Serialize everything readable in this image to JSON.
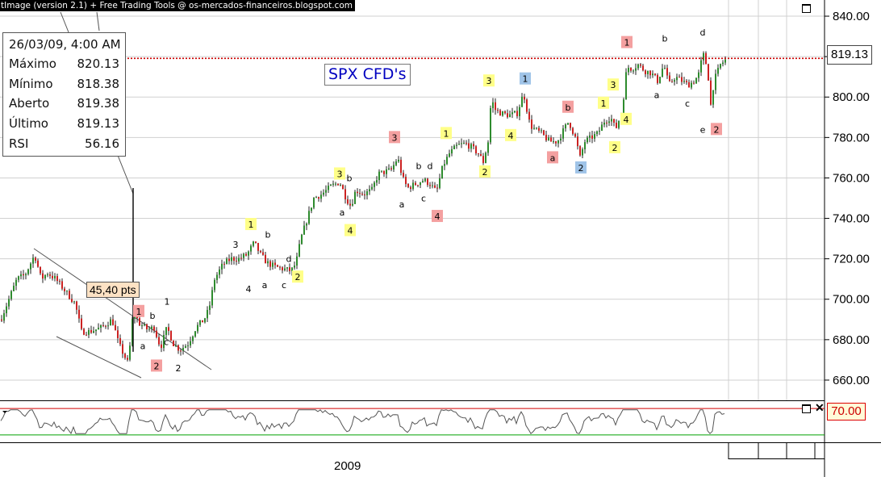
{
  "window": {
    "title": "tImage (version 2.1) + Free Trading Tools @ os-mercados-financeiros.blogspot.com"
  },
  "info_box": {
    "date": "26/03/09, 4:00 AM",
    "rows": [
      {
        "label": "Máximo",
        "value": "820.13"
      },
      {
        "label": "Mínimo",
        "value": "818.38"
      },
      {
        "label": "Aberto",
        "value": "819.38"
      },
      {
        "label": "Último",
        "value": "819.13"
      },
      {
        "label": "RSI",
        "value": "56.16"
      }
    ]
  },
  "instrument_label": "SPX CFD's",
  "last_price_tag": "819.13",
  "rsi_level_tag": "70.00",
  "measure_label": "45,40 pts",
  "year_label": "2009",
  "colors": {
    "candle_up": "#2e8b2e",
    "candle_down": "#cc2222",
    "price_line": "#cc0000",
    "rsi_line": "#555555",
    "rsi_upper": "#d00000",
    "rsi_lower": "#00a000",
    "label_yellow": "#ffff88",
    "label_red": "#f4a0a0",
    "label_blue": "#a0c4e8",
    "grid": "#d0d0d0"
  },
  "chart_data": {
    "type": "candlestick",
    "title": "SPX CFD's",
    "x_period_label": "2009",
    "ylim": [
      650,
      848
    ],
    "yticks": [
      "840.00",
      "820.00",
      "800.00",
      "780.00",
      "760.00",
      "740.00",
      "720.00",
      "700.00",
      "680.00",
      "660.00"
    ],
    "last_price": 819.13,
    "measure": {
      "label": "45,40 pts",
      "value": 45.4
    },
    "anchors": [
      [
        0,
        690
      ],
      [
        10,
        700
      ],
      [
        20,
        710
      ],
      [
        30,
        712
      ],
      [
        42,
        722
      ],
      [
        50,
        710
      ],
      [
        58,
        713
      ],
      [
        68,
        710
      ],
      [
        80,
        704
      ],
      [
        92,
        698
      ],
      [
        100,
        684
      ],
      [
        110,
        684
      ],
      [
        125,
        686
      ],
      [
        138,
        690
      ],
      [
        146,
        678
      ],
      [
        158,
        668
      ],
      [
        164,
        694
      ],
      [
        172,
        688
      ],
      [
        182,
        685
      ],
      [
        190,
        686
      ],
      [
        198,
        676
      ],
      [
        206,
        686
      ],
      [
        214,
        678
      ],
      [
        222,
        675
      ],
      [
        232,
        678
      ],
      [
        242,
        686
      ],
      [
        252,
        690
      ],
      [
        258,
        695
      ],
      [
        265,
        710
      ],
      [
        275,
        717
      ],
      [
        285,
        720
      ],
      [
        295,
        720
      ],
      [
        305,
        722
      ],
      [
        314,
        728
      ],
      [
        322,
        722
      ],
      [
        330,
        718
      ],
      [
        340,
        716
      ],
      [
        350,
        715
      ],
      [
        360,
        714
      ],
      [
        366,
        718
      ],
      [
        372,
        730
      ],
      [
        380,
        740
      ],
      [
        388,
        750
      ],
      [
        398,
        752
      ],
      [
        410,
        756
      ],
      [
        420,
        758
      ],
      [
        428,
        750
      ],
      [
        434,
        746
      ],
      [
        440,
        754
      ],
      [
        450,
        752
      ],
      [
        460,
        754
      ],
      [
        468,
        762
      ],
      [
        476,
        763
      ],
      [
        484,
        764
      ],
      [
        492,
        770
      ],
      [
        498,
        760
      ],
      [
        504,
        755
      ],
      [
        514,
        757
      ],
      [
        524,
        759
      ],
      [
        532,
        757
      ],
      [
        540,
        753
      ],
      [
        548,
        766
      ],
      [
        556,
        772
      ],
      [
        566,
        776
      ],
      [
        576,
        777
      ],
      [
        584,
        775
      ],
      [
        592,
        772
      ],
      [
        598,
        768
      ],
      [
        604,
        778
      ],
      [
        608,
        800
      ],
      [
        612,
        794
      ],
      [
        620,
        792
      ],
      [
        630,
        791
      ],
      [
        640,
        792
      ],
      [
        648,
        802
      ],
      [
        656,
        786
      ],
      [
        662,
        784
      ],
      [
        670,
        782
      ],
      [
        680,
        778
      ],
      [
        690,
        778
      ],
      [
        698,
        784
      ],
      [
        704,
        788
      ],
      [
        712,
        780
      ],
      [
        718,
        770
      ],
      [
        724,
        778
      ],
      [
        732,
        780
      ],
      [
        740,
        782
      ],
      [
        748,
        788
      ],
      [
        756,
        790
      ],
      [
        762,
        784
      ],
      [
        770,
        793
      ],
      [
        776,
        815
      ],
      [
        782,
        814
      ],
      [
        790,
        816
      ],
      [
        798,
        813
      ],
      [
        806,
        812
      ],
      [
        814,
        808
      ],
      [
        822,
        816
      ],
      [
        828,
        806
      ],
      [
        836,
        810
      ],
      [
        844,
        808
      ],
      [
        852,
        806
      ],
      [
        860,
        808
      ],
      [
        866,
        812
      ],
      [
        870,
        822
      ],
      [
        876,
        814
      ],
      [
        880,
        796
      ],
      [
        884,
        808
      ],
      [
        892,
        816
      ],
      [
        900,
        819
      ]
    ],
    "wave_labels": [
      {
        "text": "1",
        "x": 172,
        "y": 694,
        "style": "red"
      },
      {
        "text": "2",
        "x": 194,
        "y": 667,
        "style": "red"
      },
      {
        "text": "1",
        "x": 311,
        "y": 737,
        "style": "yellow"
      },
      {
        "text": "2",
        "x": 369,
        "y": 711,
        "style": "yellow"
      },
      {
        "text": "3",
        "x": 421,
        "y": 762,
        "style": "yellow"
      },
      {
        "text": "4",
        "x": 434,
        "y": 734,
        "style": "yellow"
      },
      {
        "text": "3",
        "x": 489,
        "y": 780,
        "style": "red"
      },
      {
        "text": "4",
        "x": 542,
        "y": 741,
        "style": "red"
      },
      {
        "text": "1",
        "x": 553,
        "y": 782,
        "style": "yellow"
      },
      {
        "text": "2",
        "x": 601,
        "y": 763,
        "style": "yellow"
      },
      {
        "text": "3",
        "x": 606,
        "y": 808,
        "style": "yellow"
      },
      {
        "text": "4",
        "x": 633,
        "y": 781,
        "style": "yellow"
      },
      {
        "text": "1",
        "x": 651,
        "y": 809,
        "style": "blue"
      },
      {
        "text": "a",
        "x": 685,
        "y": 770,
        "style": "red"
      },
      {
        "text": "b",
        "x": 704,
        "y": 795,
        "style": "red"
      },
      {
        "text": "2",
        "x": 720,
        "y": 765,
        "style": "blue"
      },
      {
        "text": "1",
        "x": 748,
        "y": 797,
        "style": "yellow"
      },
      {
        "text": "2",
        "x": 762,
        "y": 775,
        "style": "yellow"
      },
      {
        "text": "3",
        "x": 760,
        "y": 806,
        "style": "yellow"
      },
      {
        "text": "4",
        "x": 776,
        "y": 789,
        "style": "yellow"
      },
      {
        "text": "1",
        "x": 777,
        "y": 827,
        "style": "red"
      },
      {
        "text": "2",
        "x": 888,
        "y": 784,
        "style": "red"
      },
      {
        "text": "1",
        "x": 207,
        "y": 699,
        "style": "plain"
      },
      {
        "text": "b",
        "x": 189,
        "y": 692,
        "style": "plain"
      },
      {
        "text": "a",
        "x": 177,
        "y": 677,
        "style": "plain"
      },
      {
        "text": "c",
        "x": 206,
        "y": 679,
        "style": "plain"
      },
      {
        "text": "2",
        "x": 221,
        "y": 666,
        "style": "plain"
      },
      {
        "text": "3",
        "x": 292,
        "y": 727,
        "style": "plain"
      },
      {
        "text": "b",
        "x": 332,
        "y": 732,
        "style": "plain"
      },
      {
        "text": "d",
        "x": 358,
        "y": 720,
        "style": "plain"
      },
      {
        "text": "4",
        "x": 308,
        "y": 705,
        "style": "plain"
      },
      {
        "text": "a",
        "x": 328,
        "y": 707,
        "style": "plain"
      },
      {
        "text": "c",
        "x": 352,
        "y": 707,
        "style": "plain"
      },
      {
        "text": "b",
        "x": 433,
        "y": 760,
        "style": "plain"
      },
      {
        "text": "a",
        "x": 424,
        "y": 743,
        "style": "plain"
      },
      {
        "text": "b",
        "x": 519,
        "y": 766,
        "style": "plain"
      },
      {
        "text": "d",
        "x": 533,
        "y": 766,
        "style": "plain"
      },
      {
        "text": "c",
        "x": 525,
        "y": 750,
        "style": "plain"
      },
      {
        "text": "a",
        "x": 498,
        "y": 747,
        "style": "plain"
      },
      {
        "text": "b",
        "x": 824,
        "y": 829,
        "style": "plain"
      },
      {
        "text": "d",
        "x": 871,
        "y": 832,
        "style": "plain"
      },
      {
        "text": "a",
        "x": 814,
        "y": 801,
        "style": "plain"
      },
      {
        "text": "c",
        "x": 852,
        "y": 797,
        "style": "plain"
      },
      {
        "text": "e",
        "x": 871,
        "y": 784,
        "style": "plain"
      }
    ],
    "rsi": {
      "upper_level": 70,
      "lower_level": 30,
      "last": 56.16
    }
  }
}
